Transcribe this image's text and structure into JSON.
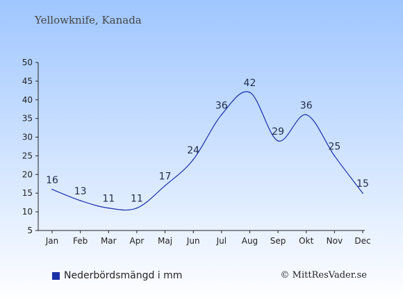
{
  "chart_data": {
    "type": "line",
    "title": "Yellowknife, Kanada",
    "categories": [
      "Jan",
      "Feb",
      "Mar",
      "Apr",
      "Maj",
      "Jun",
      "Jul",
      "Aug",
      "Sep",
      "Okt",
      "Nov",
      "Dec"
    ],
    "series": [
      {
        "name": "Nederbördsmängd i mm",
        "values": [
          16,
          13,
          11,
          11,
          17,
          24,
          36,
          42,
          29,
          36,
          25,
          15
        ]
      }
    ],
    "ylim": [
      5,
      50
    ],
    "yticks": [
      5,
      10,
      15,
      20,
      25,
      30,
      35,
      40,
      45,
      50
    ],
    "xlabel": "",
    "ylabel": "",
    "legend_position": "bottom-left",
    "grid": false
  },
  "credit": "© MittResVader.se",
  "colors": {
    "line": "#1a2fa6",
    "legend_swatch": "#1a2fa6",
    "background_top": "#9fc6ff",
    "background_bottom": "#ffffff",
    "text": "#222222"
  }
}
